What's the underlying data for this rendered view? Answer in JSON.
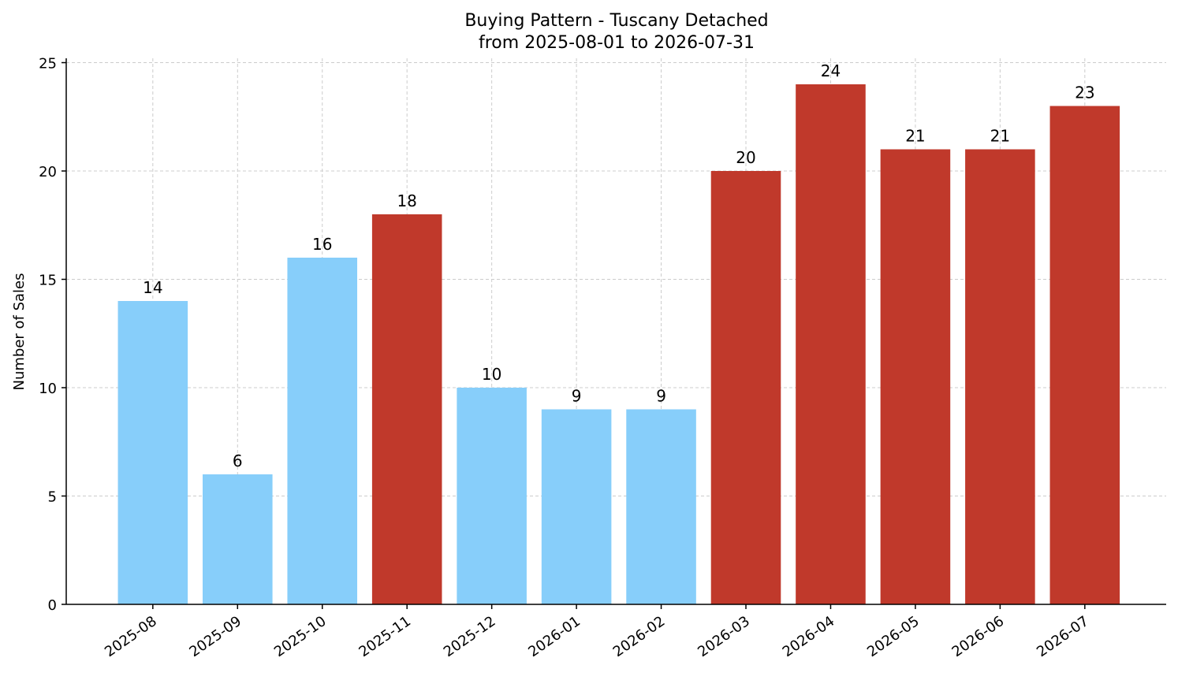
{
  "chart_data": {
    "type": "bar",
    "title": "Buying Pattern - Tuscany Detached",
    "subtitle": "from 2025-08-01 to 2026-07-31",
    "xlabel": "",
    "ylabel": "Number of Sales",
    "ylim": [
      0,
      25.2
    ],
    "yticks": [
      0,
      5,
      10,
      15,
      20,
      25
    ],
    "grid": true,
    "categories": [
      "2025-08",
      "2025-09",
      "2025-10",
      "2025-11",
      "2025-12",
      "2026-01",
      "2026-02",
      "2026-03",
      "2026-04",
      "2026-05",
      "2026-06",
      "2026-07"
    ],
    "values": [
      14,
      6,
      16,
      18,
      10,
      9,
      9,
      20,
      24,
      21,
      21,
      23
    ],
    "bar_colors": [
      "#87CEFA",
      "#87CEFA",
      "#87CEFA",
      "#C0392B",
      "#87CEFA",
      "#87CEFA",
      "#87CEFA",
      "#C0392B",
      "#C0392B",
      "#C0392B",
      "#C0392B",
      "#C0392B"
    ]
  }
}
